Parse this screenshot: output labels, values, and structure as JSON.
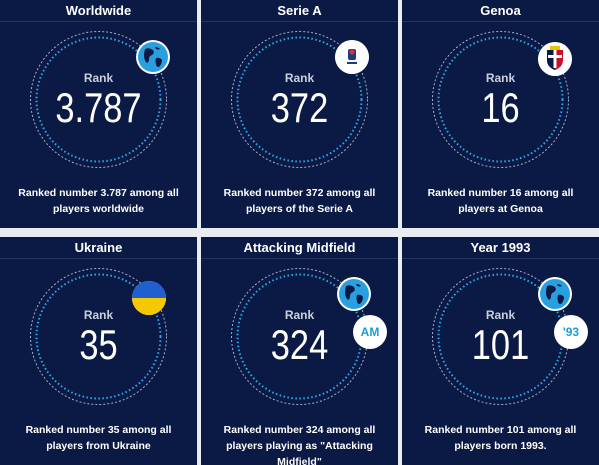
{
  "colors": {
    "card_bg": "#0b1a45",
    "ring_outer": "#4a78b8",
    "ring_inner": "#2aa9ea",
    "accent": "#1e9bd7",
    "page_bg": "#e9ecf1"
  },
  "cards": [
    {
      "title": "Worldwide",
      "rank_label": "Rank",
      "rank_value": "3.787",
      "description": "Ranked number 3.787 among all players worldwide",
      "badge_icon": "globe-icon"
    },
    {
      "title": "Serie A",
      "rank_label": "Rank",
      "rank_value": "372",
      "description": "Ranked number 372 among all players of the Serie A",
      "badge_icon": "serie-a-logo-icon"
    },
    {
      "title": "Genoa",
      "rank_label": "Rank",
      "rank_value": "16",
      "description": "Ranked number 16 among all players at Genoa",
      "badge_icon": "genoa-crest-icon"
    },
    {
      "title": "Ukraine",
      "rank_label": "Rank",
      "rank_value": "35",
      "description": "Ranked number 35 among all players from Ukraine",
      "badge_icon": "ukraine-flag-icon"
    },
    {
      "title": "Attacking Midfield",
      "rank_label": "Rank",
      "rank_value": "324",
      "description": "Ranked number 324 among all players playing as \"Attacking Midfield\"",
      "badge_icon": "globe-icon",
      "badge_text": "AM"
    },
    {
      "title": "Year 1993",
      "rank_label": "Rank",
      "rank_value": "101",
      "description": "Ranked number 101 among all players born 1993.",
      "badge_icon": "globe-icon",
      "badge_text": "'93"
    }
  ]
}
